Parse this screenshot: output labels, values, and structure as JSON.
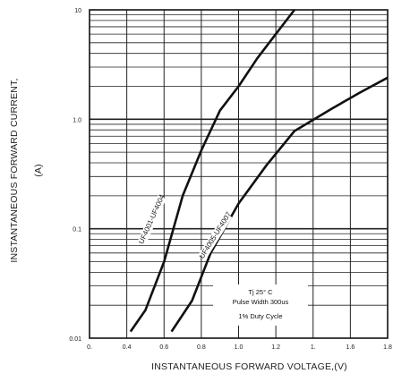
{
  "chart_data": {
    "type": "line",
    "title": "",
    "xlabel": "INSTANTANEOUS FORWARD VOLTAGE,(V)",
    "ylabel_line1": "INSTANTANEOUS FORWARD CURRENT,",
    "ylabel_line2": "(A)",
    "x_scale": "linear",
    "y_scale": "log",
    "xlim": [
      0.2,
      1.8
    ],
    "ylim": [
      0.01,
      10
    ],
    "x_ticks": [
      {
        "value": 0.2,
        "label": "0."
      },
      {
        "value": 0.4,
        "label": "0.4"
      },
      {
        "value": 0.6,
        "label": "0.6"
      },
      {
        "value": 0.8,
        "label": "0.8"
      },
      {
        "value": 1.0,
        "label": "1.0"
      },
      {
        "value": 1.2,
        "label": "1.2"
      },
      {
        "value": 1.4,
        "label": "1."
      },
      {
        "value": 1.6,
        "label": "1.6"
      },
      {
        "value": 1.8,
        "label": "1.8"
      }
    ],
    "y_ticks": [
      {
        "value": 10,
        "label": "10"
      },
      {
        "value": 1,
        "label": "1.0"
      },
      {
        "value": 0.1,
        "label": "0.1"
      },
      {
        "value": 0.01,
        "label": "0.01"
      }
    ],
    "grid": true,
    "series": [
      {
        "name": "UF4001-UF4004",
        "points": [
          [
            0.42,
            0.0115
          ],
          [
            0.5,
            0.018
          ],
          [
            0.6,
            0.05
          ],
          [
            0.7,
            0.2
          ],
          [
            0.8,
            0.52
          ],
          [
            0.9,
            1.2
          ],
          [
            1.0,
            2.0
          ],
          [
            1.1,
            3.6
          ],
          [
            1.2,
            6.0
          ],
          [
            1.3,
            10.0
          ]
        ]
      },
      {
        "name": "UF4005-UF4007",
        "points": [
          [
            0.64,
            0.0115
          ],
          [
            0.75,
            0.022
          ],
          [
            0.85,
            0.06
          ],
          [
            1.0,
            0.17
          ],
          [
            1.15,
            0.38
          ],
          [
            1.3,
            0.78
          ],
          [
            1.5,
            1.25
          ],
          [
            1.65,
            1.75
          ],
          [
            1.8,
            2.4
          ]
        ]
      }
    ],
    "annotations": {
      "line1": "Tj   25° C",
      "line2": "Pulse Width  300us",
      "line3": "1% Duty Cycle"
    }
  }
}
